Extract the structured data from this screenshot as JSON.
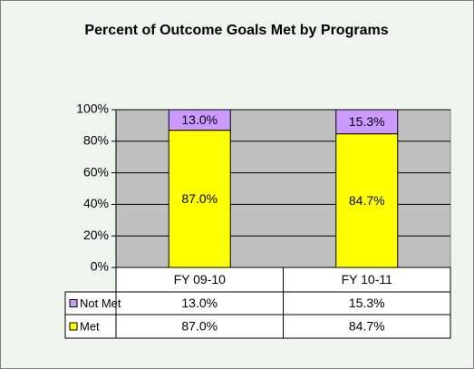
{
  "chart_data": {
    "type": "stacked_bar",
    "title": "Percent of Outcome Goals Met by Programs",
    "categories": [
      "FY 09-10",
      "FY 10-11"
    ],
    "series": [
      {
        "name": "Met",
        "color": "#ffff00",
        "values": [
          87.0,
          84.7
        ],
        "value_labels": [
          "87.0%",
          "84.7%"
        ]
      },
      {
        "name": "Not Met",
        "color": "#cc99ff",
        "values": [
          13.0,
          15.3
        ],
        "value_labels": [
          "13.0%",
          "15.3%"
        ]
      }
    ],
    "ylim": [
      0,
      100
    ],
    "yticks": [
      {
        "value": 0,
        "label": "0%"
      },
      {
        "value": 20,
        "label": "20%"
      },
      {
        "value": 40,
        "label": "40%"
      },
      {
        "value": 60,
        "label": "60%"
      },
      {
        "value": 80,
        "label": "80%"
      },
      {
        "value": 100,
        "label": "100%"
      }
    ],
    "grid": true,
    "plot_background": "#c0c0c0"
  }
}
